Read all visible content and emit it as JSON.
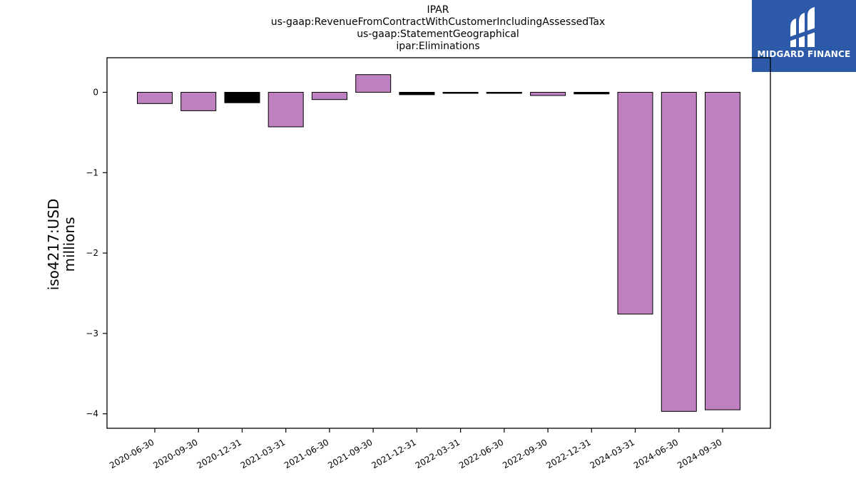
{
  "header": {
    "title_lines": [
      "IPAR",
      "us-gaap:RevenueFromContractWithCustomerIncludingAssessedTax",
      "us-gaap:StatementGeographical",
      "ipar:Eliminations"
    ]
  },
  "logo": {
    "text": "MIDGARD FINANCE",
    "icon": "midgard-logo-icon",
    "background": "#2c5aa9"
  },
  "axis": {
    "ylabel_line1": "iso4217:USD",
    "ylabel_line2": "millions"
  },
  "chart_data": {
    "type": "bar",
    "categories": [
      "2020-06-30",
      "2020-09-30",
      "2020-12-31",
      "2021-03-31",
      "2021-06-30",
      "2021-09-30",
      "2021-12-31",
      "2022-03-31",
      "2022-06-30",
      "2022-09-30",
      "2022-12-31",
      "2024-03-31",
      "2024-06-30",
      "2024-09-30"
    ],
    "values": [
      -0.14,
      -0.23,
      -0.13,
      -0.43,
      -0.09,
      0.22,
      -0.03,
      -0.01,
      -0.01,
      -0.04,
      -0.02,
      -2.76,
      -3.97,
      -3.95
    ],
    "colors": [
      "#bf80bf",
      "#bf80bf",
      "#000000",
      "#bf80bf",
      "#bf80bf",
      "#bf80bf",
      "#000000",
      "#000000",
      "#000000",
      "#bf80bf",
      "#000000",
      "#bf80bf",
      "#bf80bf",
      "#bf80bf"
    ],
    "ylim": [
      -4.18,
      0.43
    ],
    "yticks": [
      0,
      -1,
      -2,
      -3,
      -4
    ],
    "ytick_labels": [
      "0",
      "−1",
      "−2",
      "−3",
      "−4"
    ],
    "title": "IPAR us-gaap:RevenueFromContractWithCustomerIncludingAssessedTax us-gaap:StatementGeographical ipar:Eliminations",
    "xlabel": "",
    "ylabel": "iso4217:USD millions",
    "grid": false,
    "legend": "none"
  }
}
